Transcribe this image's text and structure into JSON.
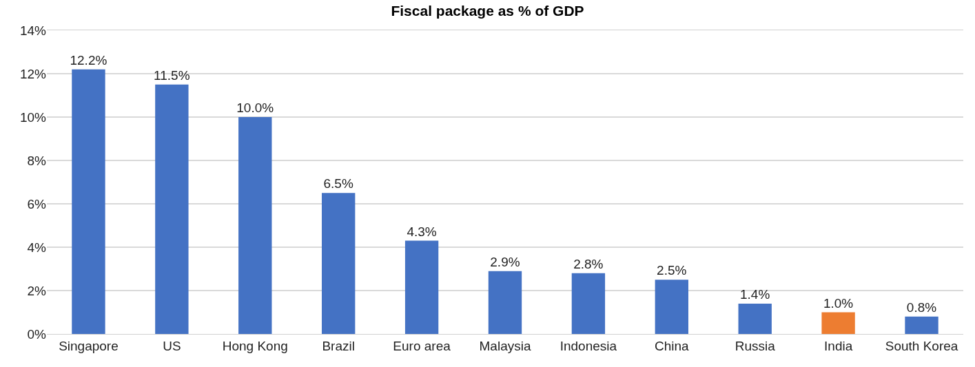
{
  "chart_data": {
    "type": "bar",
    "title": "Fiscal package as % of GDP",
    "categories": [
      "Singapore",
      "US",
      "Hong Kong",
      "Brazil",
      "Euro area",
      "Malaysia",
      "Indonesia",
      "China",
      "Russia",
      "India",
      "South Korea"
    ],
    "values": [
      12.2,
      11.5,
      10.0,
      6.5,
      4.3,
      2.9,
      2.8,
      2.5,
      1.4,
      1.0,
      0.8
    ],
    "value_labels": [
      "12.2%",
      "11.5%",
      "10.0%",
      "6.5%",
      "4.3%",
      "2.9%",
      "2.8%",
      "2.5%",
      "1.4%",
      "1.0%",
      "0.8%"
    ],
    "colors": [
      "#4472c4",
      "#4472c4",
      "#4472c4",
      "#4472c4",
      "#4472c4",
      "#4472c4",
      "#4472c4",
      "#4472c4",
      "#4472c4",
      "#ed7d31",
      "#4472c4"
    ],
    "ylim": [
      0,
      14
    ],
    "yticks": [
      {
        "value": 0,
        "label": "0%"
      },
      {
        "value": 2,
        "label": "2%"
      },
      {
        "value": 4,
        "label": "4%"
      },
      {
        "value": 6,
        "label": "6%"
      },
      {
        "value": 8,
        "label": "8%"
      },
      {
        "value": 10,
        "label": "10%"
      },
      {
        "value": 12,
        "label": "12%"
      },
      {
        "value": 14,
        "label": "14%"
      }
    ],
    "grid": "y"
  }
}
